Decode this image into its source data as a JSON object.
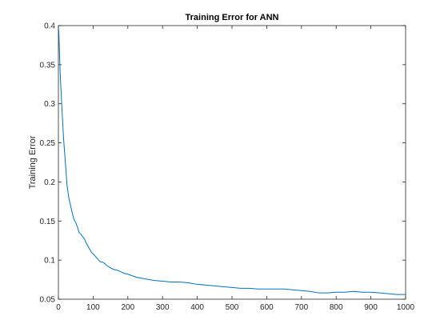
{
  "chart_data": {
    "type": "line",
    "title": "Training Error for ANN",
    "xlabel": "",
    "ylabel": "Training Error",
    "xlim": [
      0,
      1000
    ],
    "ylim": [
      0.05,
      0.4
    ],
    "xticks": [
      0,
      100,
      200,
      300,
      400,
      500,
      600,
      700,
      800,
      900,
      1000
    ],
    "yticks": [
      0.05,
      0.1,
      0.15,
      0.2,
      0.25,
      0.3,
      0.35,
      0.4
    ],
    "xtick_labels": [
      "0",
      "100",
      "200",
      "300",
      "400",
      "500",
      "600",
      "700",
      "800",
      "900",
      "1000"
    ],
    "ytick_labels": [
      "0.05",
      "0.1",
      "0.15",
      "0.2",
      "0.25",
      "0.3",
      "0.35",
      "0.4"
    ],
    "grid": false,
    "series": [
      {
        "color": "#0072bd",
        "x": [
          1,
          5,
          10,
          15,
          20,
          25,
          30,
          35,
          40,
          45,
          50,
          55,
          60,
          65,
          70,
          75,
          80,
          85,
          90,
          95,
          100,
          110,
          120,
          130,
          140,
          150,
          160,
          170,
          180,
          190,
          200,
          225,
          250,
          275,
          300,
          325,
          350,
          375,
          400,
          425,
          450,
          475,
          500,
          525,
          550,
          575,
          600,
          625,
          650,
          675,
          700,
          725,
          750,
          775,
          800,
          825,
          850,
          875,
          900,
          925,
          950,
          975,
          1000
        ],
        "y": [
          0.395,
          0.34,
          0.295,
          0.255,
          0.225,
          0.195,
          0.18,
          0.17,
          0.16,
          0.152,
          0.148,
          0.142,
          0.135,
          0.133,
          0.13,
          0.127,
          0.122,
          0.118,
          0.114,
          0.11,
          0.108,
          0.103,
          0.098,
          0.097,
          0.093,
          0.09,
          0.088,
          0.087,
          0.085,
          0.083,
          0.082,
          0.078,
          0.076,
          0.074,
          0.073,
          0.072,
          0.072,
          0.071,
          0.069,
          0.068,
          0.067,
          0.066,
          0.065,
          0.064,
          0.064,
          0.063,
          0.063,
          0.063,
          0.063,
          0.062,
          0.061,
          0.06,
          0.058,
          0.058,
          0.059,
          0.059,
          0.06,
          0.059,
          0.059,
          0.058,
          0.057,
          0.056,
          0.056
        ]
      }
    ]
  }
}
